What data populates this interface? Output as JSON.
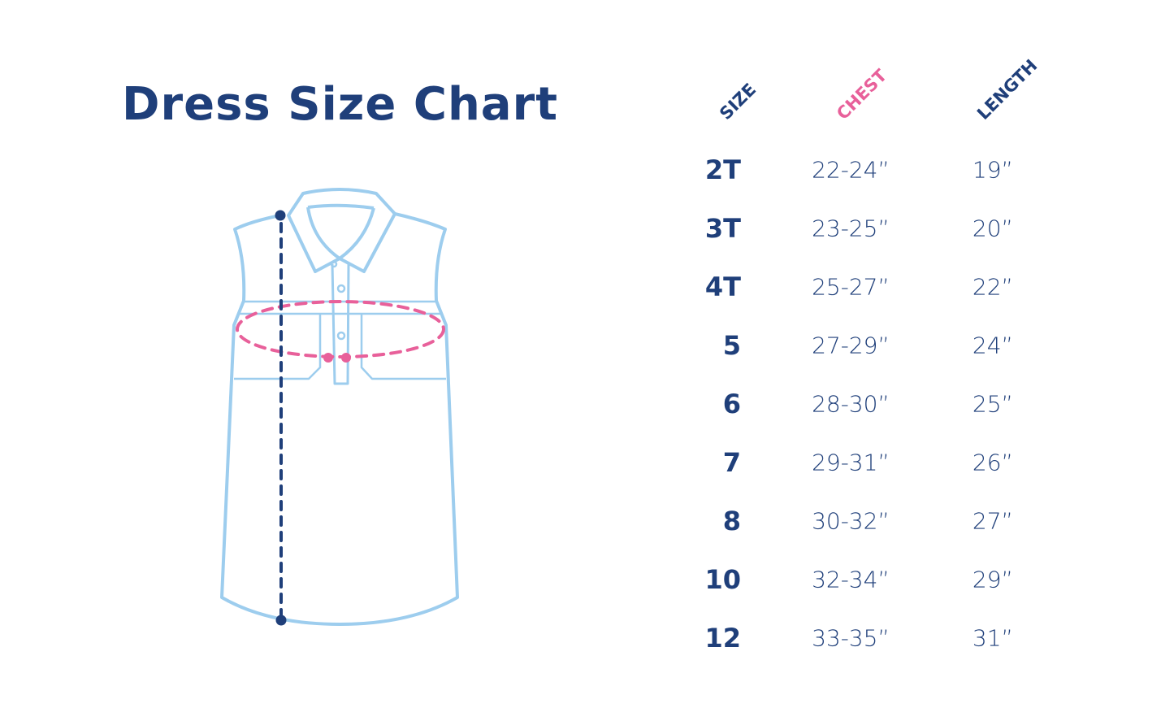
{
  "title": "Dress Size Chart",
  "colors": {
    "navy": "#1f3f7a",
    "pink": "#e8609a",
    "outline": "#9dcdee"
  },
  "illustration": "sleeveless-collared-dress-icon",
  "chart_data": {
    "type": "table",
    "columns": [
      "SIZE",
      "CHEST",
      "LENGTH"
    ],
    "rows": [
      {
        "size": "2T",
        "chest": "22-24”",
        "length": "19”"
      },
      {
        "size": "3T",
        "chest": "23-25”",
        "length": "20”"
      },
      {
        "size": "4T",
        "chest": "25-27”",
        "length": "22”"
      },
      {
        "size": "5",
        "chest": "27-29”",
        "length": "24”"
      },
      {
        "size": "6",
        "chest": "28-30”",
        "length": "25”"
      },
      {
        "size": "7",
        "chest": "29-31”",
        "length": "26”"
      },
      {
        "size": "8",
        "chest": "30-32”",
        "length": "27”"
      },
      {
        "size": "10",
        "chest": "32-34”",
        "length": "29”"
      },
      {
        "size": "12",
        "chest": "33-35”",
        "length": "31”"
      }
    ]
  }
}
